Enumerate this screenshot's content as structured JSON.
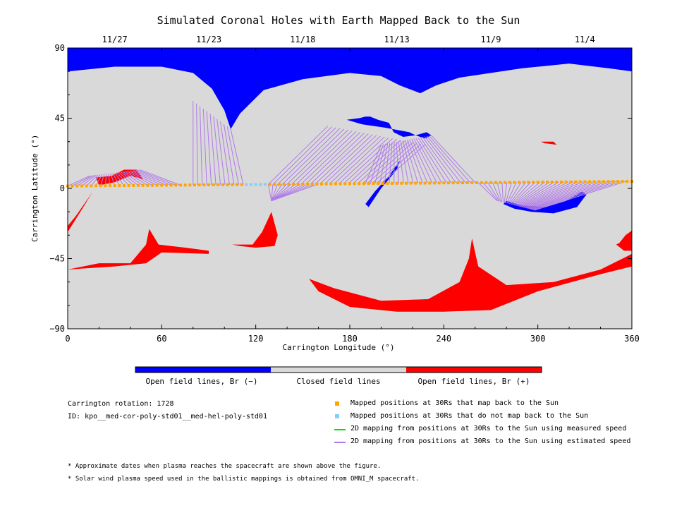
{
  "title": "Simulated Coronal Holes with Earth Mapped Back to the Sun",
  "colors": {
    "closed": "#d9d9d9",
    "open_negative": "#0000ff",
    "open_positive": "#ff0000",
    "mapped_back": "#ffa500",
    "not_mapped_back": "#87cefa",
    "measured_speed_line": "#00e000",
    "estimated_speed_line": "#b07ae8"
  },
  "chart_data": {
    "type": "scatter",
    "title": "Simulated Coronal Holes with Earth Mapped Back to the Sun",
    "xlabel": "Carrington Longitude (°)",
    "ylabel": "Carrington Latitude (°)",
    "xlim": [
      0,
      360
    ],
    "ylim": [
      -90,
      90
    ],
    "xticks": [
      "0",
      "60",
      "120",
      "180",
      "240",
      "300",
      "360"
    ],
    "yticks": [
      "90",
      "45",
      "0",
      "-45",
      "-90"
    ],
    "top_axis_dates": [
      {
        "label": "11/27",
        "lon": 30
      },
      {
        "label": "11/23",
        "lon": 90
      },
      {
        "label": "11/18",
        "lon": 150
      },
      {
        "label": "11/13",
        "lon": 210
      },
      {
        "label": "11/9",
        "lon": 270
      },
      {
        "label": "11/4",
        "lon": 330
      }
    ],
    "earth_track": {
      "lat_start": 1.5,
      "lat_end": 4.5,
      "lon_start": 0,
      "lon_end": 360,
      "not_mapped_lon_range": [
        114,
        127
      ]
    },
    "regions": [
      {
        "polarity": "negative",
        "name": "north polar hole",
        "lon": [
          0,
          0,
          10,
          30,
          60,
          80,
          92,
          100,
          104,
          110,
          125,
          150,
          180,
          200,
          212,
          225,
          235,
          250,
          270,
          290,
          320,
          345,
          360,
          360
        ],
        "lat": [
          90,
          75,
          76,
          78,
          78,
          74,
          64,
          50,
          38,
          48,
          63,
          70,
          74,
          72,
          66,
          61,
          66,
          71,
          74,
          77,
          80,
          77,
          75,
          90
        ]
      },
      {
        "polarity": "negative",
        "name": "mid-latitude hole",
        "lon": [
          178,
          188,
          202,
          218,
          222,
          228,
          232,
          229,
          222,
          214,
          208,
          205,
          198,
          193,
          190,
          186
        ],
        "lat": [
          44,
          41,
          39,
          36,
          34,
          32,
          34,
          36,
          34,
          33,
          36,
          42,
          44,
          46,
          46,
          45
        ]
      },
      {
        "polarity": "negative",
        "name": "equatorial extension",
        "lon": [
          190,
          196,
          205,
          212,
          210,
          200,
          192
        ],
        "lat": [
          -10,
          -2,
          8,
          18,
          12,
          0,
          -12
        ]
      },
      {
        "polarity": "negative",
        "name": "low-latitude hole",
        "lon": [
          278,
          285,
          296,
          310,
          325,
          331,
          328,
          318,
          305,
          290,
          280
        ],
        "lat": [
          -10,
          -13,
          -15,
          -16,
          -12,
          -4,
          -2,
          -8,
          -12,
          -11,
          -8
        ]
      },
      {
        "polarity": "positive",
        "name": "southern band",
        "lon": [
          0,
          0,
          20,
          40,
          50,
          52,
          58,
          75,
          90,
          90,
          60,
          50,
          30,
          0
        ],
        "lat": [
          -42,
          -52,
          -48,
          -48,
          -36,
          -26,
          -36,
          -38,
          -40,
          -42,
          -41,
          -48,
          -50,
          -52
        ]
      },
      {
        "polarity": "positive",
        "name": "equatorial patch A",
        "lon": [
          18,
          28,
          36,
          44,
          48,
          40,
          30,
          20
        ],
        "lat": [
          7,
          8,
          12,
          12,
          6,
          8,
          4,
          2
        ]
      },
      {
        "polarity": "positive",
        "name": "equatorial patch B",
        "lon": [
          105,
          118,
          124,
          130,
          134,
          132,
          120,
          110
        ],
        "lat": [
          -36,
          -36,
          -28,
          -15,
          -30,
          -37,
          -38,
          -37
        ]
      },
      {
        "polarity": "positive",
        "name": "southern hole",
        "lon": [
          154,
          170,
          200,
          230,
          250,
          256,
          258,
          262,
          280,
          310,
          340,
          360,
          360,
          340,
          300,
          270,
          240,
          210,
          180,
          160
        ],
        "lat": [
          -58,
          -64,
          -72,
          -71,
          -60,
          -45,
          -32,
          -50,
          -62,
          -60,
          -52,
          -42,
          -50,
          -55,
          -66,
          -78,
          -79,
          -79,
          -76,
          -66
        ]
      },
      {
        "polarity": "positive",
        "name": "small patch",
        "lon": [
          302,
          310,
          312,
          304
        ],
        "lat": [
          30,
          30,
          28,
          29
        ]
      },
      {
        "polarity": "positive",
        "name": "western limb",
        "lon": [
          0,
          5,
          14,
          16,
          10,
          0
        ],
        "lat": [
          -24,
          -18,
          -5,
          -2,
          -12,
          -28
        ]
      },
      {
        "polarity": "positive",
        "name": "eastern limb",
        "lon": [
          352,
          356,
          360,
          360,
          355,
          350
        ],
        "lat": [
          -35,
          -30,
          -27,
          -40,
          -40,
          -36
        ]
      }
    ],
    "mapping_fans": [
      {
        "to_lon": [
          80,
          104
        ],
        "to_lat": [
          56,
          38
        ],
        "from_lon": [
          80,
          112
        ]
      },
      {
        "to_lon": [
          14,
          46
        ],
        "to_lat": [
          8,
          12
        ],
        "from_lon": [
          0,
          72
        ]
      },
      {
        "to_lon": [
          130,
          130
        ],
        "to_lat": [
          -8,
          -8
        ],
        "from_lon": [
          128,
          160
        ]
      },
      {
        "to_lon": [
          166,
          228
        ],
        "to_lat": [
          40,
          28
        ],
        "from_lon": [
          128,
          200
        ]
      },
      {
        "to_lon": [
          200,
          232
        ],
        "to_lat": [
          28,
          34
        ],
        "from_lon": [
          190,
          260
        ]
      },
      {
        "to_lon": [
          274,
          298
        ],
        "to_lat": [
          -8,
          -14
        ],
        "from_lon": [
          262,
          356
        ]
      }
    ]
  },
  "legend_bar": {
    "labels": [
      "Open field lines, Br (−)",
      "Closed field lines",
      "Open field lines, Br (+)"
    ]
  },
  "info": {
    "rotation": "Carrington rotation: 1728",
    "id": "ID: kpo__med-cor-poly-std01__med-hel-poly-std01"
  },
  "legend": [
    {
      "label": "Mapped positions at 30Rs that map back to the Sun",
      "kind": "square",
      "color": "#ffa500"
    },
    {
      "label": "Mapped positions at 30Rs that do not map back to the Sun",
      "kind": "square",
      "color": "#87cefa"
    },
    {
      "label": "2D mapping from positions at 30Rs to the Sun using measured speed",
      "kind": "line",
      "color": "#00e000"
    },
    {
      "label": "2D mapping from positions at 30Rs to the Sun using estimated speed",
      "kind": "line",
      "color": "#b07ae8"
    }
  ],
  "footnotes": [
    "* Approximate dates when plasma reaches the spacecraft are shown above the figure.",
    "* Solar wind plasma speed used in the ballistic mappings is obtained from OMNI_M spacecraft."
  ]
}
